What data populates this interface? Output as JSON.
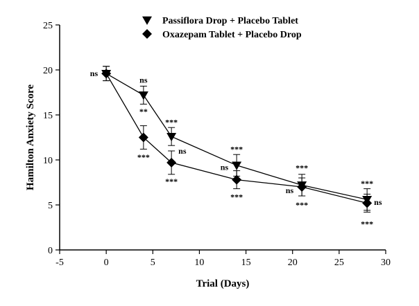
{
  "chart_data": {
    "type": "line",
    "xlabel": "Trial (Days)",
    "ylabel": "Hamilton Anxiety Score",
    "xlim": [
      -5,
      30
    ],
    "ylim": [
      0,
      25
    ],
    "xticks": [
      -5,
      0,
      5,
      10,
      15,
      20,
      25,
      30
    ],
    "yticks": [
      0,
      5,
      10,
      15,
      20,
      25
    ],
    "x": [
      0,
      4,
      7,
      14,
      21,
      28
    ],
    "legend_position": "top-center",
    "series": [
      {
        "name": "Passiflora Drop + Placebo Tablet",
        "marker": "triangle-down",
        "values": [
          19.6,
          17.2,
          12.6,
          9.4,
          7.2,
          5.6
        ],
        "error": [
          0.8,
          1.0,
          1.0,
          1.2,
          1.2,
          1.2
        ]
      },
      {
        "name": "Oxazepam Tablet + Placebo Drop",
        "marker": "diamond",
        "values": [
          19.6,
          12.5,
          9.7,
          7.8,
          7.0,
          5.2
        ],
        "error": [
          0.8,
          1.3,
          1.3,
          1.0,
          1.0,
          1.0
        ]
      }
    ],
    "annotations": [
      {
        "text": "ns",
        "x": 0,
        "y": 19.6,
        "anchor": "left"
      },
      {
        "text": "ns",
        "x": 4,
        "y": 18.9,
        "anchor": "above"
      },
      {
        "text": "**",
        "x": 4,
        "y": 15.4,
        "anchor": "between"
      },
      {
        "text": "***",
        "x": 4,
        "y": 10.3,
        "anchor": "below"
      },
      {
        "text": "***",
        "x": 7,
        "y": 14.2,
        "anchor": "above"
      },
      {
        "text": "ns",
        "x": 7,
        "y": 11.0,
        "anchor": "right"
      },
      {
        "text": "***",
        "x": 7,
        "y": 7.6,
        "anchor": "below"
      },
      {
        "text": "***",
        "x": 14,
        "y": 11.2,
        "anchor": "above"
      },
      {
        "text": "ns",
        "x": 14,
        "y": 9.2,
        "anchor": "left"
      },
      {
        "text": "***",
        "x": 14,
        "y": 5.9,
        "anchor": "below"
      },
      {
        "text": "***",
        "x": 21,
        "y": 9.1,
        "anchor": "above"
      },
      {
        "text": "ns",
        "x": 21,
        "y": 6.6,
        "anchor": "left"
      },
      {
        "text": "***",
        "x": 21,
        "y": 5.0,
        "anchor": "below"
      },
      {
        "text": "***",
        "x": 28,
        "y": 7.4,
        "anchor": "above"
      },
      {
        "text": "ns",
        "x": 28,
        "y": 5.3,
        "anchor": "right"
      },
      {
        "text": "***",
        "x": 28,
        "y": 2.9,
        "anchor": "below"
      }
    ]
  }
}
